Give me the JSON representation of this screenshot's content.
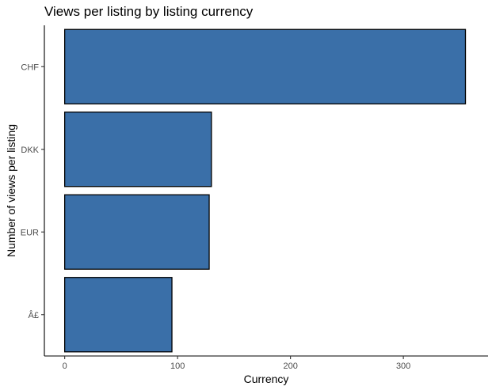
{
  "chart_data": {
    "type": "bar",
    "orientation": "horizontal",
    "title": "Views per listing by listing currency",
    "xlabel": "Currency",
    "ylabel": "Number of views per listing",
    "categories": [
      "CHF",
      "DKK",
      "EUR",
      "Â£"
    ],
    "values": [
      355,
      130,
      128,
      95
    ],
    "xlim": [
      -18,
      375
    ],
    "xticks": [
      0,
      100,
      200,
      300
    ],
    "xtick_labels": [
      "0",
      "100",
      "200",
      "300"
    ],
    "grid": false,
    "legend": "none",
    "colors": {
      "bar_fill": "#3a6fa8",
      "bar_outline": "#000000"
    }
  }
}
